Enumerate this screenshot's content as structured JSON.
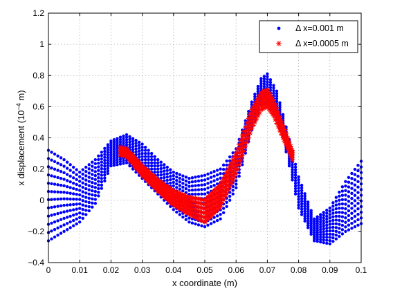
{
  "chart_data": {
    "type": "scatter",
    "title": "",
    "xlabel": "x coordinate (m)",
    "ylabel_prefix": "x displacement (10",
    "ylabel_exponent": "−4",
    "ylabel_suffix": " m)",
    "xlim": [
      0,
      0.1
    ],
    "ylim": [
      -0.4,
      1.2
    ],
    "x_ticks": [
      "0",
      "0.01",
      "0.02",
      "0.03",
      "0.04",
      "0.05",
      "0.06",
      "0.07",
      "0.08",
      "0.09",
      "0.1"
    ],
    "y_ticks": [
      "−0.4",
      "−0.2",
      "0",
      "0.2",
      "0.4",
      "0.6",
      "0.8",
      "1",
      "1.2"
    ],
    "grid": true,
    "legend_position": "top-right",
    "series": [
      {
        "name": "Δ x=0.001 m",
        "marker": "dot",
        "color": "#0000ff",
        "x_range": [
          0,
          0.1
        ],
        "band_curves": {
          "x": [
            0,
            0.005,
            0.01,
            0.015,
            0.02,
            0.025,
            0.03,
            0.035,
            0.04,
            0.045,
            0.05,
            0.055,
            0.06,
            0.065,
            0.068,
            0.07,
            0.073,
            0.075,
            0.08,
            0.085,
            0.09,
            0.095,
            0.1
          ],
          "upper": [
            0.32,
            0.26,
            0.18,
            0.26,
            0.38,
            0.42,
            0.36,
            0.26,
            0.18,
            0.14,
            0.16,
            0.2,
            0.33,
            0.63,
            0.78,
            0.81,
            0.7,
            0.55,
            0.15,
            -0.12,
            -0.05,
            0.12,
            0.25
          ],
          "lower": [
            -0.26,
            -0.2,
            -0.14,
            -0.02,
            0.22,
            0.24,
            0.14,
            0.04,
            -0.06,
            -0.14,
            -0.17,
            -0.12,
            0.08,
            0.45,
            0.61,
            0.62,
            0.52,
            0.4,
            -0.05,
            -0.26,
            -0.28,
            -0.2,
            -0.15
          ]
        }
      },
      {
        "name": "Δ x=0.0005 m",
        "marker": "asterisk",
        "color": "#ff0000",
        "x_range": [
          0.023,
          0.078
        ],
        "band_curves": {
          "x": [
            0.023,
            0.025,
            0.03,
            0.035,
            0.04,
            0.045,
            0.05,
            0.055,
            0.06,
            0.065,
            0.068,
            0.07,
            0.072,
            0.075,
            0.078
          ],
          "upper": [
            0.34,
            0.33,
            0.22,
            0.13,
            0.06,
            0.02,
            0.0,
            0.1,
            0.3,
            0.58,
            0.69,
            0.71,
            0.64,
            0.48,
            0.32
          ],
          "lower": [
            0.29,
            0.28,
            0.16,
            0.06,
            -0.03,
            -0.09,
            -0.14,
            -0.04,
            0.17,
            0.46,
            0.58,
            0.6,
            0.54,
            0.4,
            0.26
          ]
        }
      }
    ]
  }
}
